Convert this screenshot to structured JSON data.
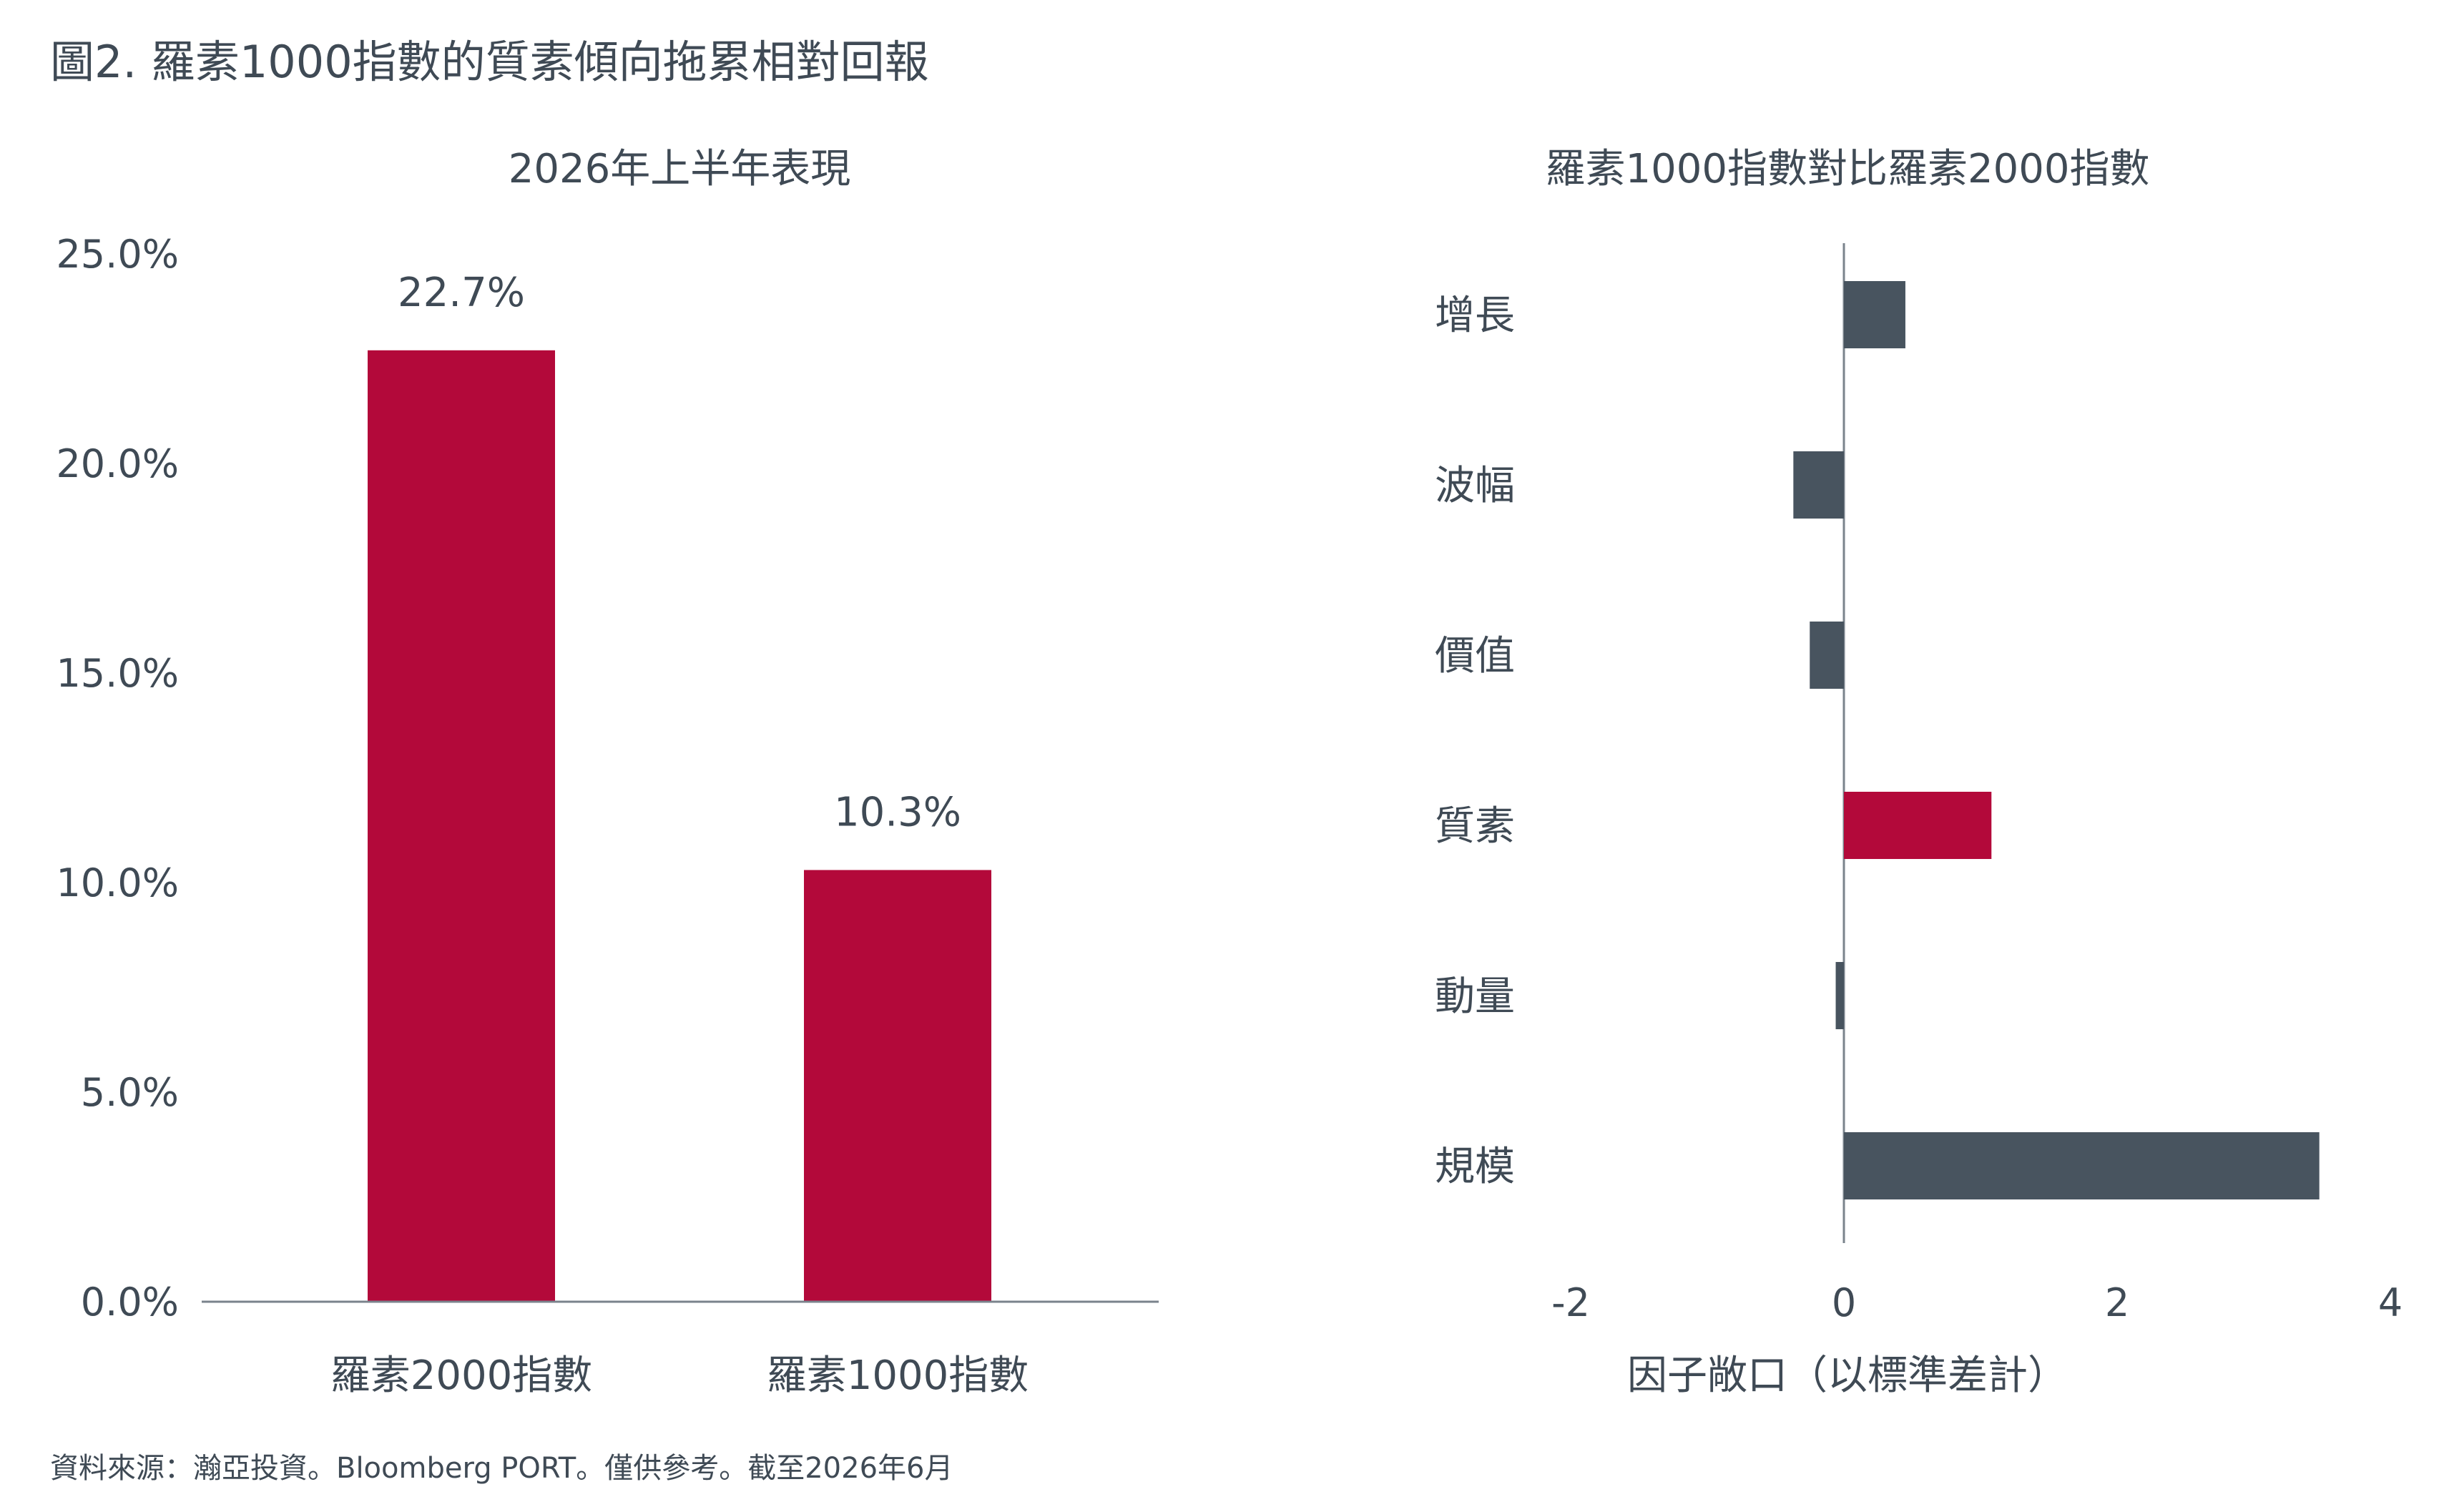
{
  "figure_title": "圖2. 羅素1000指數的質素傾向拖累相對回報",
  "source_note": "資料來源：瀚亞投資。Bloomberg PORT。僅供參考。截至2026年6月",
  "colors": {
    "red": "#b3093a",
    "slate": "#48545f",
    "axis": "#7a838c",
    "text": "#3f4a55"
  },
  "chart_data": [
    {
      "type": "bar",
      "title": "2026年上半年表現",
      "categories": [
        "羅素2000指數",
        "羅素1000指數"
      ],
      "values": [
        22.7,
        10.3
      ],
      "data_labels": [
        "22.7%",
        "10.3%"
      ],
      "ylim": [
        0,
        25
      ],
      "yticks": [
        0,
        5,
        10,
        15,
        20,
        25
      ],
      "ytick_labels": [
        "0.0%",
        "5.0%",
        "10.0%",
        "15.0%",
        "20.0%",
        "25.0%"
      ],
      "xlabel": "",
      "ylabel": "",
      "bar_colors": [
        "#b3093a",
        "#b3093a"
      ],
      "grid": false,
      "legend": "none"
    },
    {
      "type": "bar",
      "orientation": "horizontal",
      "title": "羅素1000指數對比羅素2000指數",
      "categories": [
        "增長",
        "波幅",
        "價值",
        "質素",
        "動量",
        "規模"
      ],
      "values": [
        0.45,
        -0.37,
        -0.25,
        1.08,
        -0.06,
        3.48
      ],
      "xlim": [
        -2,
        4
      ],
      "xticks": [
        -2,
        0,
        2,
        4
      ],
      "xtick_labels": [
        "-2",
        "0",
        "2",
        "4"
      ],
      "xlabel": "因子敞口（以標準差計）",
      "ylabel": "",
      "bar_colors": [
        "#48545f",
        "#48545f",
        "#48545f",
        "#b3093a",
        "#48545f",
        "#48545f"
      ],
      "grid": false,
      "legend": "none"
    }
  ]
}
